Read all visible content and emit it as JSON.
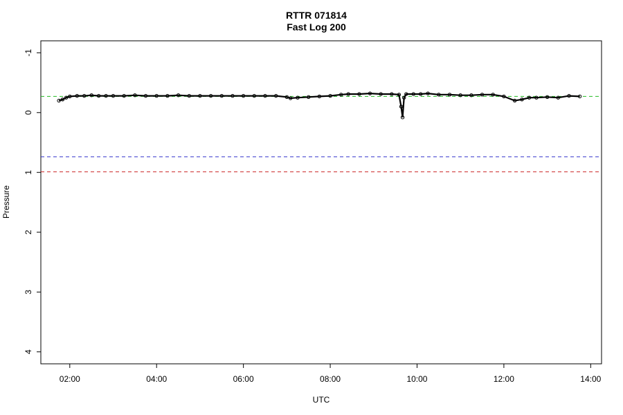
{
  "chart_data": {
    "type": "line",
    "title": "RTTR 071814",
    "subtitle": "Fast Log 200",
    "xlabel": "UTC",
    "ylabel": "Pressure",
    "xlim": [
      "01:20",
      "14:15"
    ],
    "ylim": [
      -1.2,
      4.2
    ],
    "y_axis_inverted": true,
    "x_ticks": [
      "02:00",
      "04:00",
      "06:00",
      "08:00",
      "10:00",
      "12:00",
      "14:00"
    ],
    "y_ticks": [
      "-1",
      "0",
      "1",
      "2",
      "3",
      "4"
    ],
    "grid": false,
    "reference_lines": [
      {
        "y": -0.27,
        "color": "#22bb22",
        "style": "dashed"
      },
      {
        "y": 0.74,
        "color": "#3333cc",
        "style": "dashed"
      },
      {
        "y": 0.99,
        "color": "#cc2222",
        "style": "dashed"
      }
    ],
    "series": [
      {
        "color": "#000000",
        "x": [
          "01:45",
          "01:50",
          "01:55",
          "02:00",
          "02:10",
          "02:20",
          "02:30",
          "02:40",
          "02:50",
          "03:00",
          "03:15",
          "03:30",
          "03:45",
          "04:00",
          "04:15",
          "04:30",
          "04:45",
          "05:00",
          "05:15",
          "05:30",
          "05:45",
          "06:00",
          "06:15",
          "06:30",
          "06:45",
          "07:00",
          "07:05",
          "07:15",
          "07:30",
          "07:45",
          "08:00",
          "08:15",
          "08:25",
          "08:40",
          "08:55",
          "09:10",
          "09:25",
          "09:35",
          "09:38",
          "09:40",
          "09:42",
          "09:45",
          "09:55",
          "10:05",
          "10:15",
          "10:30",
          "10:45",
          "11:00",
          "11:15",
          "11:30",
          "11:45",
          "12:00",
          "12:15",
          "12:25",
          "12:35",
          "12:45",
          "13:00",
          "13:15",
          "13:30",
          "13:45"
        ],
        "y": [
          -0.2,
          -0.22,
          -0.25,
          -0.27,
          -0.28,
          -0.28,
          -0.29,
          -0.28,
          -0.28,
          -0.28,
          -0.28,
          -0.29,
          -0.28,
          -0.28,
          -0.28,
          -0.29,
          -0.28,
          -0.28,
          -0.28,
          -0.28,
          -0.28,
          -0.28,
          -0.28,
          -0.28,
          -0.28,
          -0.26,
          -0.24,
          -0.25,
          -0.26,
          -0.27,
          -0.28,
          -0.3,
          -0.31,
          -0.31,
          -0.32,
          -0.31,
          -0.31,
          -0.3,
          -0.1,
          0.08,
          -0.25,
          -0.31,
          -0.31,
          -0.31,
          -0.32,
          -0.3,
          -0.3,
          -0.29,
          -0.29,
          -0.3,
          -0.3,
          -0.27,
          -0.2,
          -0.22,
          -0.25,
          -0.25,
          -0.26,
          -0.25,
          -0.28,
          -0.27
        ]
      }
    ]
  }
}
